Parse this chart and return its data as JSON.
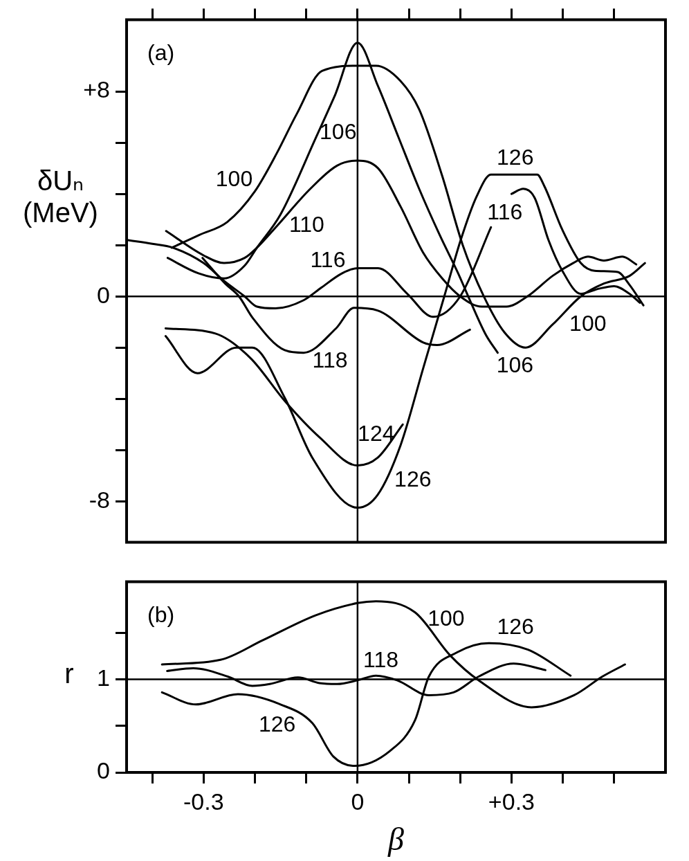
{
  "chart_data": [
    {
      "type": "line",
      "ylabel": "δUₙ (MeV)",
      "xlim": [
        -0.45,
        0.6
      ],
      "ylim": [
        -9.6,
        10.8
      ],
      "tick_labels": "y",
      "grid": false,
      "legend": false,
      "marker": "none",
      "line_style": "solid",
      "xticks": [
        {
          "value": -0.4,
          "label": null
        },
        {
          "value": -0.3,
          "label": null
        },
        {
          "value": -0.2,
          "label": null
        },
        {
          "value": -0.1,
          "label": null
        },
        {
          "value": 0,
          "label": null
        },
        {
          "value": 0.1,
          "label": null
        },
        {
          "value": 0.2,
          "label": null
        },
        {
          "value": 0.3,
          "label": null
        },
        {
          "value": 0.4,
          "label": null
        },
        {
          "value": 0.5,
          "label": null
        }
      ],
      "yticks": [
        -8,
        {
          "value": -6,
          "label": null
        },
        {
          "value": -4,
          "label": null
        },
        {
          "value": -2,
          "label": null
        },
        0,
        {
          "value": 2,
          "label": null
        },
        {
          "value": 4,
          "label": null
        },
        {
          "value": 6,
          "label": null
        },
        {
          "value": 8,
          "label": "+8"
        }
      ],
      "ref_lines": [
        {
          "axis": "y",
          "value": 0
        },
        {
          "axis": "x",
          "value": 0
        }
      ],
      "annotations": [
        "(a)",
        {
          "text": "100",
          "x": -0.2,
          "y": 4.1
        },
        {
          "text": "106",
          "x": -0.081,
          "y": 6.2
        },
        {
          "text": "110",
          "x": -0.157,
          "y": 2.75
        },
        {
          "text": "116",
          "x": -0.07,
          "y": 0.35
        },
        {
          "text": "118",
          "x": -0.105,
          "y": -2.2
        },
        {
          "text": "124",
          "x": 0.039,
          "y": -6.3
        },
        {
          "text": "126",
          "x": 0.039,
          "y": -7.75
        },
        {
          "text": "126",
          "x": 0.26,
          "y": 4.75
        },
        {
          "text": "116",
          "x": 0.26,
          "y": 2.7
        },
        {
          "text": "106",
          "x": 0.273,
          "y": -2.2
        },
        {
          "text": "100",
          "x": 0.38,
          "y": -1.1
        }
      ],
      "series": [
        {
          "color": "#000000",
          "x": [
            -0.362,
            -0.308,
            -0.254,
            -0.2,
            -0.157,
            -0.119,
            -0.069,
            0,
            0.036,
            0.084,
            0.12,
            0.165,
            0.205,
            0.246,
            0.286,
            0.327,
            0.38,
            0.435,
            0.48,
            0.53,
            0.56
          ],
          "values": [
            1.9,
            2.4,
            2.9,
            4.1,
            5.6,
            7.1,
            8.8,
            9.0,
            9.0,
            8.4,
            7.3,
            4.7,
            2.0,
            0,
            -1.4,
            -2.0,
            -1.1,
            0,
            0.5,
            0.8,
            1.3
          ]
        },
        {
          "color": "#000000",
          "x": [
            -0.37,
            -0.31,
            -0.26,
            -0.22,
            -0.196,
            -0.15,
            -0.081,
            -0.045,
            0,
            0.04,
            0.08,
            0.12,
            0.16,
            0.196,
            0.22,
            0.25,
            0.273
          ],
          "values": [
            1.5,
            0.9,
            0.7,
            1.2,
            1.9,
            3.2,
            6.2,
            7.8,
            9.9,
            8.2,
            6.2,
            4.2,
            2.4,
            0.9,
            -0.2,
            -1.5,
            -2.2
          ]
        },
        {
          "color": "#000000",
          "x": [
            -0.373,
            -0.3,
            -0.26,
            -0.22,
            -0.196,
            -0.157,
            -0.092,
            -0.04,
            0,
            0.04,
            0.084,
            0.128,
            0.165,
            0.2,
            0.242,
            0.29,
            0.331,
            0.38,
            0.42,
            0.449,
            0.48,
            0.516,
            0.543
          ],
          "values": [
            2.55,
            1.6,
            1.3,
            1.5,
            1.9,
            2.75,
            4.2,
            5.1,
            5.3,
            5.0,
            3.5,
            1.7,
            0.7,
            0,
            -0.4,
            -0.4,
            0,
            0.8,
            1.3,
            1.55,
            1.4,
            1.55,
            1.25
          ]
        },
        {
          "color": "#000000",
          "x": [
            -0.45,
            -0.4,
            -0.36,
            -0.3,
            -0.26,
            -0.22,
            -0.196,
            -0.16,
            -0.105,
            -0.07,
            -0.03,
            0,
            0.04,
            0.097,
            0.147,
            0.2,
            0.26
          ],
          "values": [
            2.2,
            2.05,
            1.9,
            1.3,
            0.6,
            0,
            -0.4,
            -0.47,
            -0.15,
            0.35,
            0.9,
            1.1,
            1.1,
            0.1,
            -0.8,
            0,
            2.7
          ]
        },
        {
          "color": "#000000",
          "x": [
            -0.302,
            -0.258,
            -0.231,
            -0.204,
            -0.142,
            -0.105,
            -0.042,
            -0.007,
            0.039,
            0.128,
            0.155,
            0.219
          ],
          "values": [
            1.5,
            0.5,
            0,
            -0.85,
            -2.1,
            -2.2,
            -1.25,
            -0.45,
            -0.55,
            -1.8,
            -1.9,
            -1.3
          ]
        },
        {
          "color": "#000000",
          "x": [
            -0.374,
            -0.277,
            -0.209,
            -0.141,
            -0.074,
            0,
            0.039,
            0.088
          ],
          "values": [
            -1.25,
            -1.45,
            -2.4,
            -4.1,
            -5.5,
            -6.6,
            -6.3,
            -5.0
          ]
        },
        {
          "color": "#000000",
          "x": [
            -0.374,
            -0.312,
            -0.236,
            -0.205,
            -0.142,
            -0.088,
            0,
            0.039,
            0.084,
            0.128,
            0.169,
            0.201,
            0.232,
            0.26,
            0.35,
            0.364,
            0.399,
            0.435,
            0.462,
            0.507,
            0.53,
            0.557
          ],
          "values": [
            -1.55,
            -3.0,
            -2.0,
            -2.0,
            -3.95,
            -6.3,
            -8.25,
            -7.75,
            -5.8,
            -2.8,
            0,
            2.2,
            3.9,
            4.75,
            4.75,
            4.3,
            2.6,
            1.3,
            1.0,
            0.95,
            0.45,
            -0.35
          ]
        },
        {
          "color": "#000000",
          "x": [
            0.3,
            0.323,
            0.345,
            0.372,
            0.399,
            0.435,
            0.47,
            0.5,
            0.53,
            0.55
          ],
          "values": [
            4.0,
            4.2,
            3.85,
            2.2,
            1.0,
            0.1,
            0.3,
            0.4,
            0.1,
            -0.25
          ]
        }
      ]
    },
    {
      "type": "line",
      "ylabel": "r",
      "xlabel": "β",
      "xlim": [
        -0.45,
        0.6
      ],
      "ylim": [
        0,
        2.05
      ],
      "grid": false,
      "legend": false,
      "marker": "none",
      "line_style": "solid",
      "xticks": [
        {
          "value": -0.4,
          "label": null
        },
        -0.3,
        {
          "value": -0.2,
          "label": null
        },
        {
          "value": -0.1,
          "label": null
        },
        0,
        {
          "value": 0.1,
          "label": null
        },
        {
          "value": 0.2,
          "label": null
        },
        {
          "value": 0.3,
          "label": "+0.3"
        },
        {
          "value": 0.4,
          "label": null
        },
        {
          "value": 0.5,
          "label": null
        }
      ],
      "yticks": [
        0,
        {
          "value": 0.5,
          "label": null
        },
        1,
        {
          "value": 1.5,
          "label": null
        }
      ],
      "ref_lines": [
        {
          "axis": "y",
          "value": 1
        },
        {
          "axis": "x",
          "value": 0
        }
      ],
      "annotations": [
        "(b)",
        {
          "text": "100",
          "x": 0.112,
          "y": 1.72
        },
        {
          "text": "126",
          "x": 0.332,
          "y": 1.32
        },
        {
          "text": "118",
          "x": 0.036,
          "y": 1.04
        },
        {
          "text": "126",
          "x": -0.15,
          "y": 0.73
        }
      ],
      "series": [
        {
          "color": "#000000",
          "x": [
            -0.381,
            -0.267,
            -0.185,
            -0.081,
            0,
            0.036,
            0.112,
            0.18,
            0.236,
            0.339,
            0.422,
            0.477,
            0.521
          ],
          "values": [
            1.16,
            1.21,
            1.42,
            1.69,
            1.82,
            1.84,
            1.72,
            1.26,
            0.99,
            0.7,
            0.83,
            1.03,
            1.16
          ]
        },
        {
          "color": "#000000",
          "x": [
            -0.371,
            -0.32,
            -0.253,
            -0.205,
            -0.171,
            -0.116,
            -0.074,
            -0.04,
            0,
            0.036,
            0.077,
            0.139,
            0.187,
            0.236,
            0.304,
            0.366
          ],
          "values": [
            1.09,
            1.12,
            1.03,
            0.93,
            0.95,
            1.02,
            0.96,
            0.95,
            0.99,
            1.04,
            0.99,
            0.83,
            0.86,
            1.03,
            1.17,
            1.1
          ]
        },
        {
          "color": "#000000",
          "x": [
            -0.381,
            -0.315,
            -0.233,
            -0.15,
            -0.088,
            -0.047,
            -0.006,
            0.063,
            0.112,
            0.139,
            0.194,
            0.256,
            0.332,
            0.415
          ],
          "values": [
            0.86,
            0.73,
            0.84,
            0.73,
            0.53,
            0.17,
            0.07,
            0.23,
            0.56,
            1.03,
            1.29,
            1.39,
            1.32,
            1.04
          ]
        }
      ]
    }
  ]
}
